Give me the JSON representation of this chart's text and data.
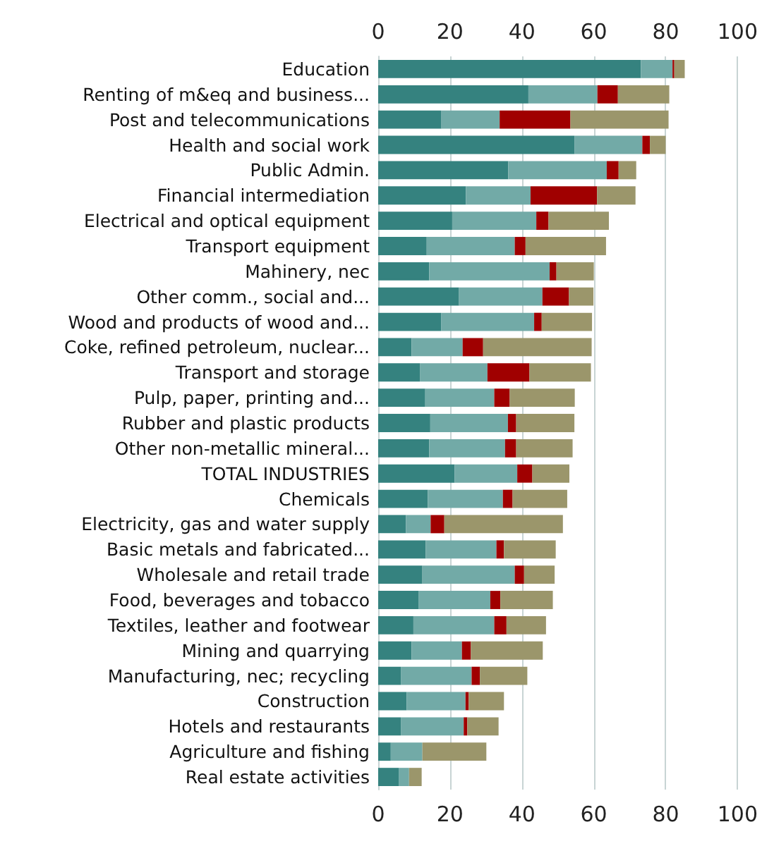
{
  "chart_data": {
    "type": "bar",
    "orientation": "horizontal",
    "stacked": true,
    "categories": [
      "Education",
      "Renting of m&eq and business...",
      "Post and telecommunications",
      "Health and social work",
      "Public Admin.",
      "Financial intermediation",
      "Electrical and optical equipment",
      "Transport equipment",
      "Mahinery, nec",
      "Other comm., social and...",
      "Wood and products of wood and...",
      "Coke, refined petroleum, nuclear...",
      "Transport and storage",
      "Pulp, paper, printing and...",
      "Rubber and plastic products",
      "Other non-metallic mineral...",
      "TOTAL INDUSTRIES",
      "Chemicals",
      "Electricity, gas and water supply",
      "Basic metals and fabricated...",
      "Wholesale and retail trade",
      "Food, beverages and tobacco",
      "Textiles, leather and footwear",
      "Mining and quarrying",
      "Manufacturing, nec; recycling",
      "Construction",
      "Hotels and restaurants",
      "Agriculture and fishing",
      "Real estate activities"
    ],
    "series": [
      {
        "color": "#35827f",
        "values": [
          73.1,
          41.8,
          17.6,
          54.6,
          36.2,
          24.4,
          20.6,
          13.5,
          14.2,
          22.5,
          17.5,
          9.3,
          11.6,
          13.1,
          14.5,
          14.2,
          21.3,
          13.8,
          7.7,
          13.2,
          12.3,
          11.2,
          9.8,
          9.3,
          6.3,
          7.9,
          6.3,
          3.5,
          5.7
        ]
      },
      {
        "color": "#72aaa7",
        "values": [
          8.8,
          19.2,
          16.2,
          18.9,
          27.4,
          18,
          23.4,
          24.5,
          33.5,
          23.2,
          25.9,
          14.2,
          18.8,
          19.2,
          21.6,
          21.1,
          17.4,
          20.9,
          6.9,
          19.7,
          25.7,
          20,
          22.5,
          14,
          19.7,
          16.4,
          17.5,
          8.8,
          2.9
        ]
      },
      {
        "color": "#a00000",
        "values": [
          0.5,
          5.7,
          19.7,
          2.1,
          3.3,
          18.5,
          3.4,
          3,
          1.9,
          7.4,
          2.1,
          5.7,
          11.7,
          4.3,
          2.3,
          3.1,
          4.2,
          2.7,
          3.8,
          2.1,
          2.6,
          2.8,
          3.4,
          2.5,
          2.3,
          0.9,
          1,
          0,
          0
        ]
      },
      {
        "color": "#9b966b",
        "values": [
          2.9,
          14.3,
          27.3,
          4.4,
          4.9,
          10.7,
          16.8,
          22.4,
          10.4,
          6.8,
          14,
          30.2,
          17.1,
          18.1,
          16.2,
          15.7,
          10.3,
          15.2,
          33,
          14.4,
          8.5,
          14.6,
          11,
          20,
          13.2,
          9.8,
          8.7,
          17.8,
          3.5
        ]
      }
    ],
    "xlim": [
      0,
      100
    ],
    "xticks": [
      0,
      20,
      40,
      60,
      80,
      100
    ],
    "x2lim": [
      0,
      100
    ],
    "x2ticks": [
      0,
      20,
      40,
      60,
      80,
      100
    ],
    "grid": "x"
  }
}
